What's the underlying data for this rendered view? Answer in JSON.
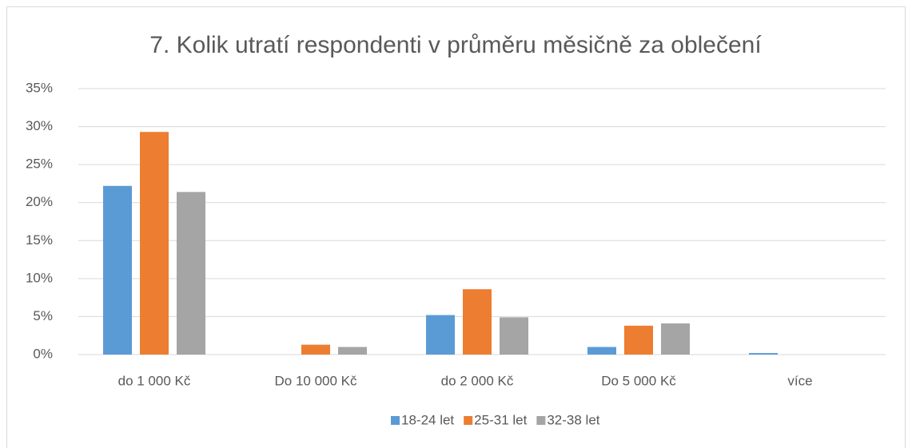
{
  "chart_data": {
    "type": "bar",
    "title": "7. Kolik utratí respondenti v průměru měsičně za oblečení",
    "categories": [
      "do 1 000 Kč",
      "Do 10 000 Kč",
      "do 2 000 Kč",
      "Do 5 000 Kč",
      "více"
    ],
    "series": [
      {
        "name": "18-24 let",
        "color": "#5b9bd5",
        "values": [
          22.2,
          0,
          5.2,
          1.0,
          0.2
        ]
      },
      {
        "name": "25-31 let",
        "color": "#ed7d31",
        "values": [
          29.3,
          1.3,
          8.6,
          3.8,
          0
        ]
      },
      {
        "name": "32-38 let",
        "color": "#a5a5a5",
        "values": [
          21.4,
          1.0,
          4.9,
          4.1,
          0
        ]
      }
    ],
    "ylim": [
      0,
      35
    ],
    "yticks": [
      {
        "value": 0,
        "label": "0%"
      },
      {
        "value": 5,
        "label": "5%"
      },
      {
        "value": 10,
        "label": "10%"
      },
      {
        "value": 15,
        "label": "15%"
      },
      {
        "value": 20,
        "label": "20%"
      },
      {
        "value": 25,
        "label": "25%"
      },
      {
        "value": 30,
        "label": "30%"
      },
      {
        "value": 35,
        "label": "35%"
      }
    ],
    "grid": true,
    "legend": "bottom"
  }
}
